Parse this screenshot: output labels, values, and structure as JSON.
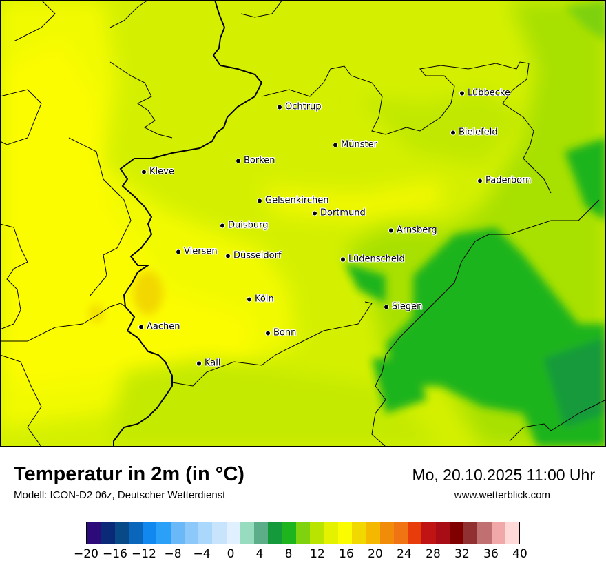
{
  "title": "Temperatur in 2m (in °C)",
  "model": "Modell: ICON-D2 06z, Deutscher Wetterdienst",
  "datetime": "Mo, 20.10.2025 11:00 Uhr",
  "site": "www.wetterblick.com",
  "cities": [
    {
      "name": "Lübbecke"
    },
    {
      "name": "Ochtrup"
    },
    {
      "name": "Bielefeld"
    },
    {
      "name": "Münster"
    },
    {
      "name": "Borken"
    },
    {
      "name": "Kleve"
    },
    {
      "name": "Paderborn"
    },
    {
      "name": "Gelsenkirchen"
    },
    {
      "name": "Dortmund"
    },
    {
      "name": "Duisburg"
    },
    {
      "name": "Arnsberg"
    },
    {
      "name": "Viersen"
    },
    {
      "name": "Düsseldorf"
    },
    {
      "name": "Lüdenscheid"
    },
    {
      "name": "Köln"
    },
    {
      "name": "Siegen"
    },
    {
      "name": "Aachen"
    },
    {
      "name": "Bonn"
    },
    {
      "name": "Kall"
    }
  ],
  "legend": {
    "colors": [
      "#2d0a7a",
      "#0a2a78",
      "#084a88",
      "#0a66bb",
      "#1188ee",
      "#2aa0f8",
      "#6ab8f8",
      "#8cc8fa",
      "#aad8fc",
      "#c8e4fc",
      "#e0f0fe",
      "#98dcc0",
      "#5cae88",
      "#149a3a",
      "#1eb41e",
      "#7ed20e",
      "#b8e400",
      "#e4f200",
      "#fcfc00",
      "#f0d800",
      "#f4b800",
      "#f08c0a",
      "#f07414",
      "#e83c0a",
      "#c01414",
      "#a80c14",
      "#800000",
      "#903030",
      "#c07070",
      "#f0a8a8",
      "#ffd8d8"
    ],
    "ticks": [
      "−20",
      "−16",
      "−12",
      "−8",
      "−4",
      "0",
      "4",
      "8",
      "12",
      "16",
      "20",
      "24",
      "28",
      "32",
      "36",
      "40"
    ]
  }
}
